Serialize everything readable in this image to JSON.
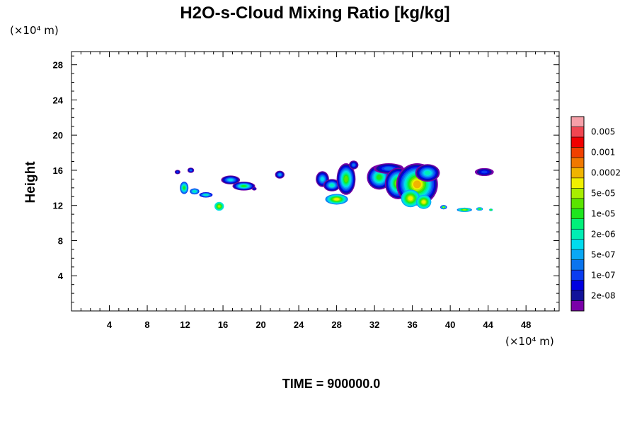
{
  "chart_data": {
    "type": "heatmap",
    "title": "H2O-s-Cloud Mixing Ratio [kg/kg]",
    "xlabel": "",
    "ylabel": "Height",
    "x_unit": "(×10⁴ m)",
    "y_unit": "(×10⁴ m)",
    "xlim": [
      0,
      51.5
    ],
    "ylim": [
      0,
      29.5
    ],
    "x_ticks": [
      4,
      8,
      12,
      16,
      20,
      24,
      28,
      32,
      36,
      40,
      44,
      48
    ],
    "y_ticks": [
      4,
      8,
      12,
      16,
      20,
      24,
      28
    ],
    "time_label": "TIME = 900000.0",
    "colorbar": {
      "colors": [
        "#7a00a8",
        "#12139a",
        "#0000e0",
        "#0a3cf0",
        "#0a74ee",
        "#0aa8f4",
        "#00dcee",
        "#00eeb4",
        "#00f07a",
        "#1ee61e",
        "#5ae400",
        "#a8ee00",
        "#f0f000",
        "#f0b400",
        "#f07800",
        "#f04000",
        "#f00000",
        "#f04650",
        "#f6a0a8"
      ],
      "labels": [
        "2e-08",
        "1e-07",
        "5e-07",
        "2e-06",
        "1e-05",
        "5e-05",
        "0.0002",
        "0.001",
        "0.005"
      ]
    },
    "cloud_regions": [
      {
        "x": [
          11.0,
          16.5
        ],
        "y": [
          11.2,
          16.3
        ],
        "max_level": 11
      },
      {
        "x": [
          16.0,
          19.5
        ],
        "y": [
          13.5,
          15.6
        ],
        "max_level": 11
      },
      {
        "x": [
          21.5,
          22.5
        ],
        "y": [
          15.1,
          16.0
        ],
        "max_level": 5
      },
      {
        "x": [
          26.0,
          31.0
        ],
        "y": [
          11.9,
          17.2
        ],
        "max_level": 12
      },
      {
        "x": [
          31.5,
          38.5
        ],
        "y": [
          11.4,
          17.0
        ],
        "max_level": 13
      },
      {
        "x": [
          38.5,
          44.0
        ],
        "y": [
          11.2,
          12.0
        ],
        "max_level": 11
      },
      {
        "x": [
          42.0,
          45.0
        ],
        "y": [
          15.0,
          16.5
        ],
        "max_level": 3
      }
    ]
  }
}
